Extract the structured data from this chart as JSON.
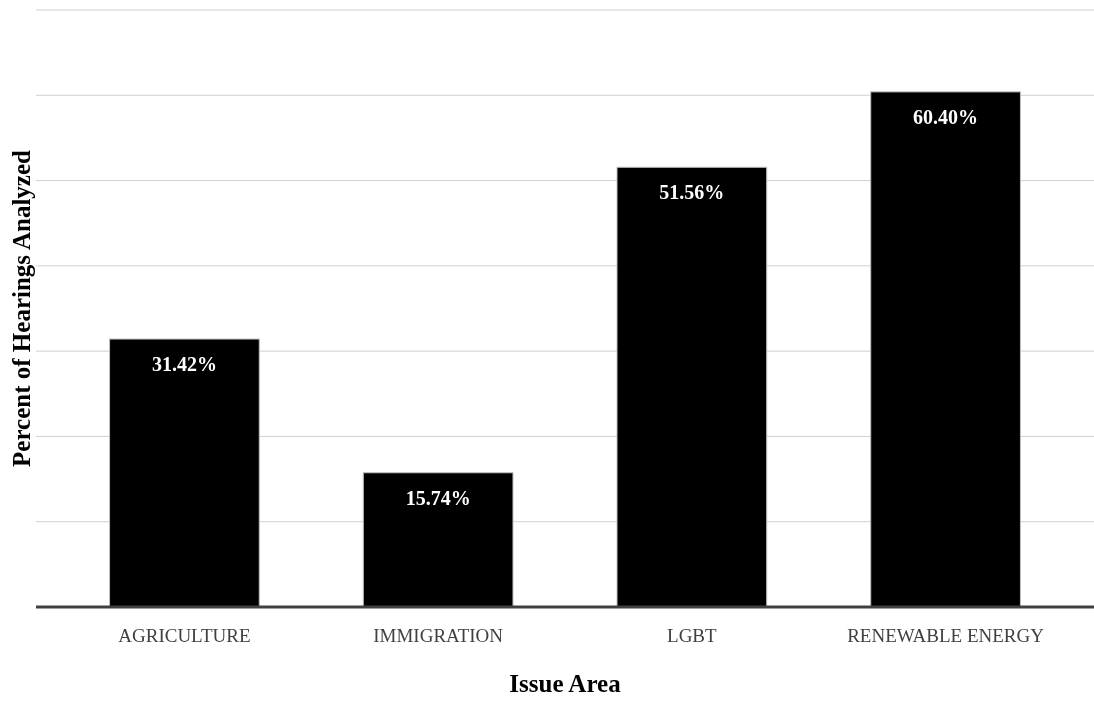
{
  "chart_data": {
    "type": "bar",
    "xlabel": "Issue Area",
    "ylabel": "Percent of Hearings Analyzed",
    "categories": [
      "AGRICULTURE",
      "IMMIGRATION",
      "LGBT",
      "RENEWABLE ENERGY"
    ],
    "values": [
      31.42,
      15.74,
      51.56,
      60.4
    ],
    "value_labels": [
      "31.42%",
      "15.74%",
      "51.56%",
      "60.40%"
    ],
    "color": "#000000",
    "ylim": [
      0,
      70
    ],
    "yticks": [
      {
        "value": 0,
        "label": null
      },
      {
        "value": 10,
        "label": null
      },
      {
        "value": 20,
        "label": null
      },
      {
        "value": 30,
        "label": null
      },
      {
        "value": 40,
        "label": null
      },
      {
        "value": 50,
        "label": null
      },
      {
        "value": 60,
        "label": null
      },
      {
        "value": 70,
        "label": null
      }
    ],
    "grid": "y",
    "tick_labels": "x"
  }
}
